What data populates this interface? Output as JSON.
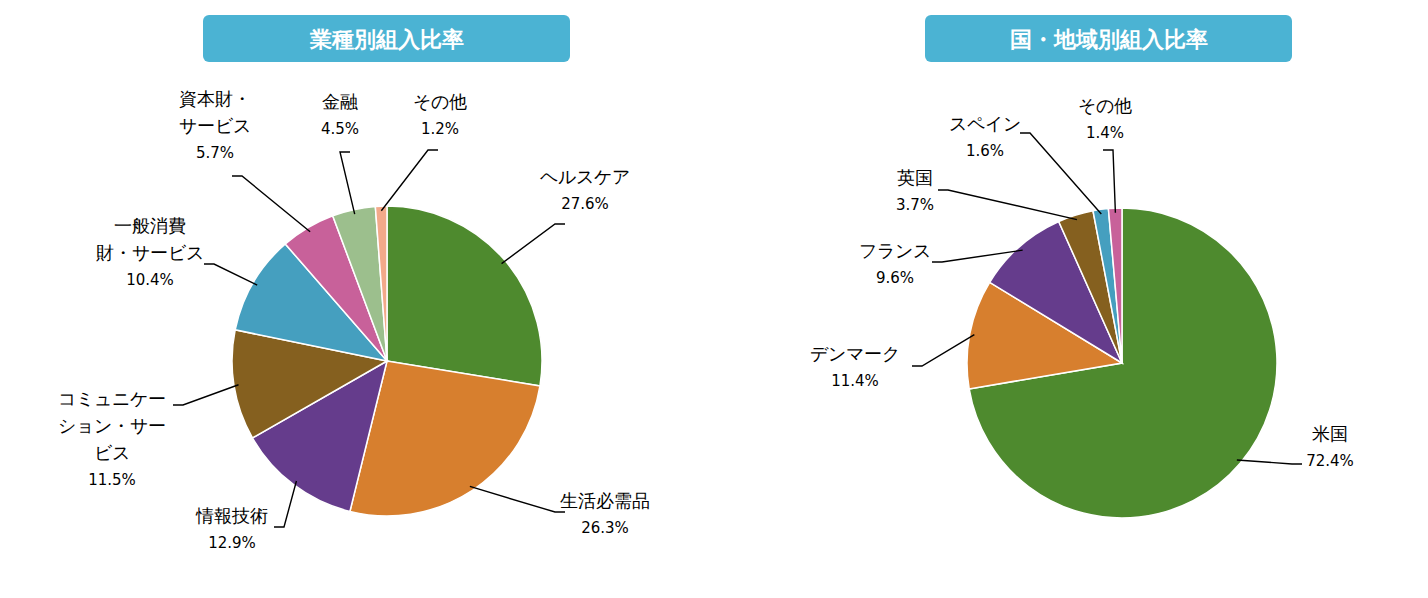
{
  "chart_data": [
    {
      "type": "pie",
      "title": "業種別組入比率",
      "categories": [
        "ヘルスケア",
        "生活必需品",
        "情報技術",
        "コミュニケー\nション・サー\nビス",
        "一般消費\n財・サービス",
        "資本財・\nサービス",
        "金融",
        "その他"
      ],
      "values": [
        27.6,
        26.3,
        12.9,
        11.5,
        10.4,
        5.7,
        4.5,
        1.2
      ],
      "value_labels": [
        "27.6%",
        "26.3%",
        "12.9%",
        "11.5%",
        "10.4%",
        "5.7%",
        "4.5%",
        "1.2%"
      ],
      "colors": [
        "#4e8a2e",
        "#d77f2e",
        "#653c8c",
        "#85601f",
        "#459fbf",
        "#c8619a",
        "#9cbf8d",
        "#f3a98a"
      ],
      "data_labels": true
    },
    {
      "type": "pie",
      "title": "国・地域別組入比率",
      "categories": [
        "米国",
        "デンマーク",
        "フランス",
        "英国",
        "スペイン",
        "その他"
      ],
      "values": [
        72.4,
        11.4,
        9.6,
        3.7,
        1.6,
        1.4
      ],
      "value_labels": [
        "72.4%",
        "11.4%",
        "9.6%",
        "3.7%",
        "1.6%",
        "1.4%"
      ],
      "colors": [
        "#4e8a2e",
        "#d77f2e",
        "#653c8c",
        "#85601f",
        "#459fbf",
        "#c8619a"
      ],
      "data_labels": true
    }
  ]
}
